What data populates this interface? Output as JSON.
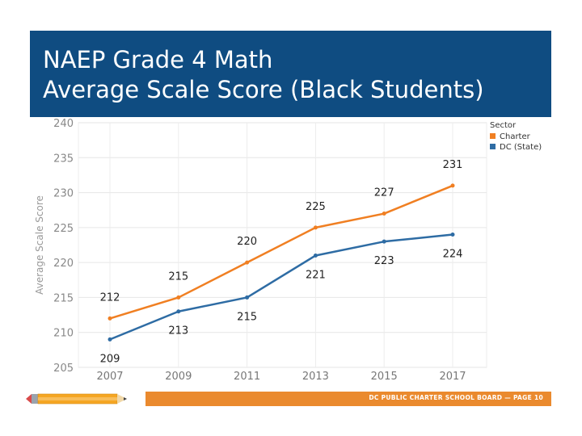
{
  "slide": {
    "title_line1": "NAEP Grade 4 Math",
    "title_line2": "Average Scale Score (Black Students)",
    "footer_text": "DC PUBLIC CHARTER SCHOOL BOARD — PAGE 10",
    "banner_color": "#0f4c81",
    "footer_color": "#ea8a2e"
  },
  "chart_data": {
    "type": "line",
    "title": "",
    "xlabel": "",
    "ylabel": "Average Scale Score",
    "categories": [
      "2007",
      "2009",
      "2011",
      "2013",
      "2015",
      "2017"
    ],
    "ylim": [
      205,
      240
    ],
    "yticks": [
      205,
      210,
      215,
      220,
      225,
      230,
      235,
      240
    ],
    "grid": true,
    "legend": {
      "title": "Sector",
      "placement": "top-right"
    },
    "series": [
      {
        "name": "Charter",
        "color": "#f07f22",
        "values": [
          212,
          215,
          220,
          225,
          227,
          231
        ]
      },
      {
        "name": "DC (State)",
        "color": "#2e6ca4",
        "values": [
          209,
          213,
          215,
          221,
          223,
          224
        ]
      }
    ]
  }
}
